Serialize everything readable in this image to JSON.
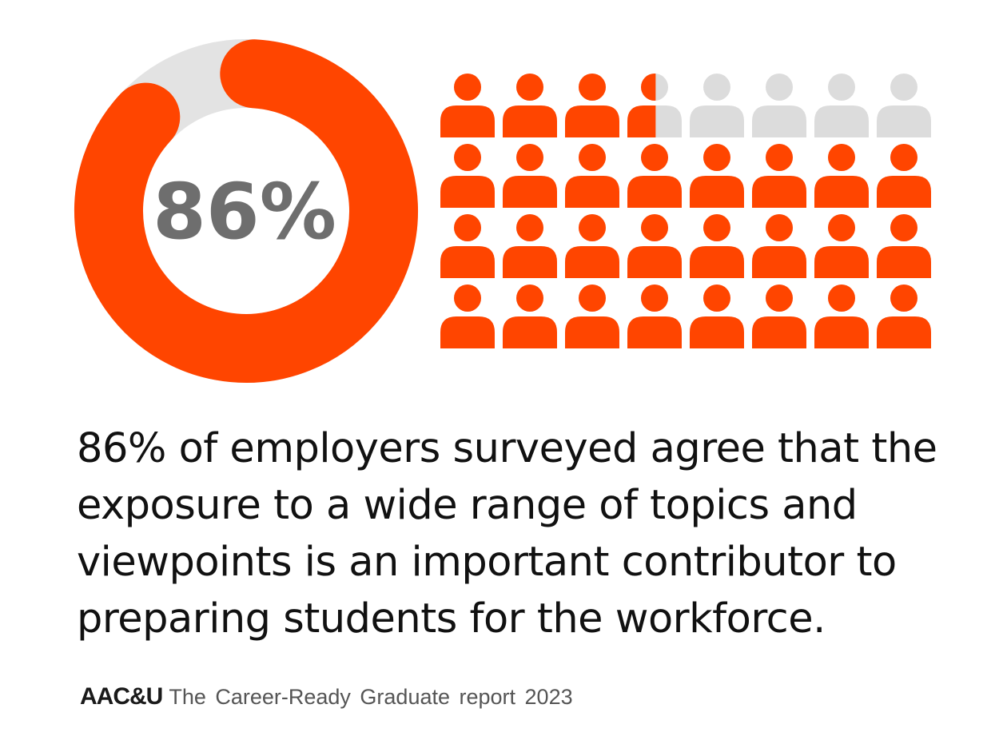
{
  "chart_data": [
    {
      "type": "donut",
      "values": [
        86
      ],
      "value_labels": [
        "86%"
      ],
      "color": "#ff4500",
      "track_color": "#e3e3e3",
      "label_color": "#6e6e6e"
    },
    {
      "type": "pictogram",
      "values": [
        86
      ],
      "color": "#ff4500",
      "empty_color": "#dcdcdc"
    }
  ],
  "description": "86% of employers surveyed agree that the exposure to a wide range of topics and viewpoints is an important contributor to preparing students for the workforce.",
  "footer": {
    "logo": "AAC&U",
    "source": "The Career-Ready Graduate report 2023"
  }
}
